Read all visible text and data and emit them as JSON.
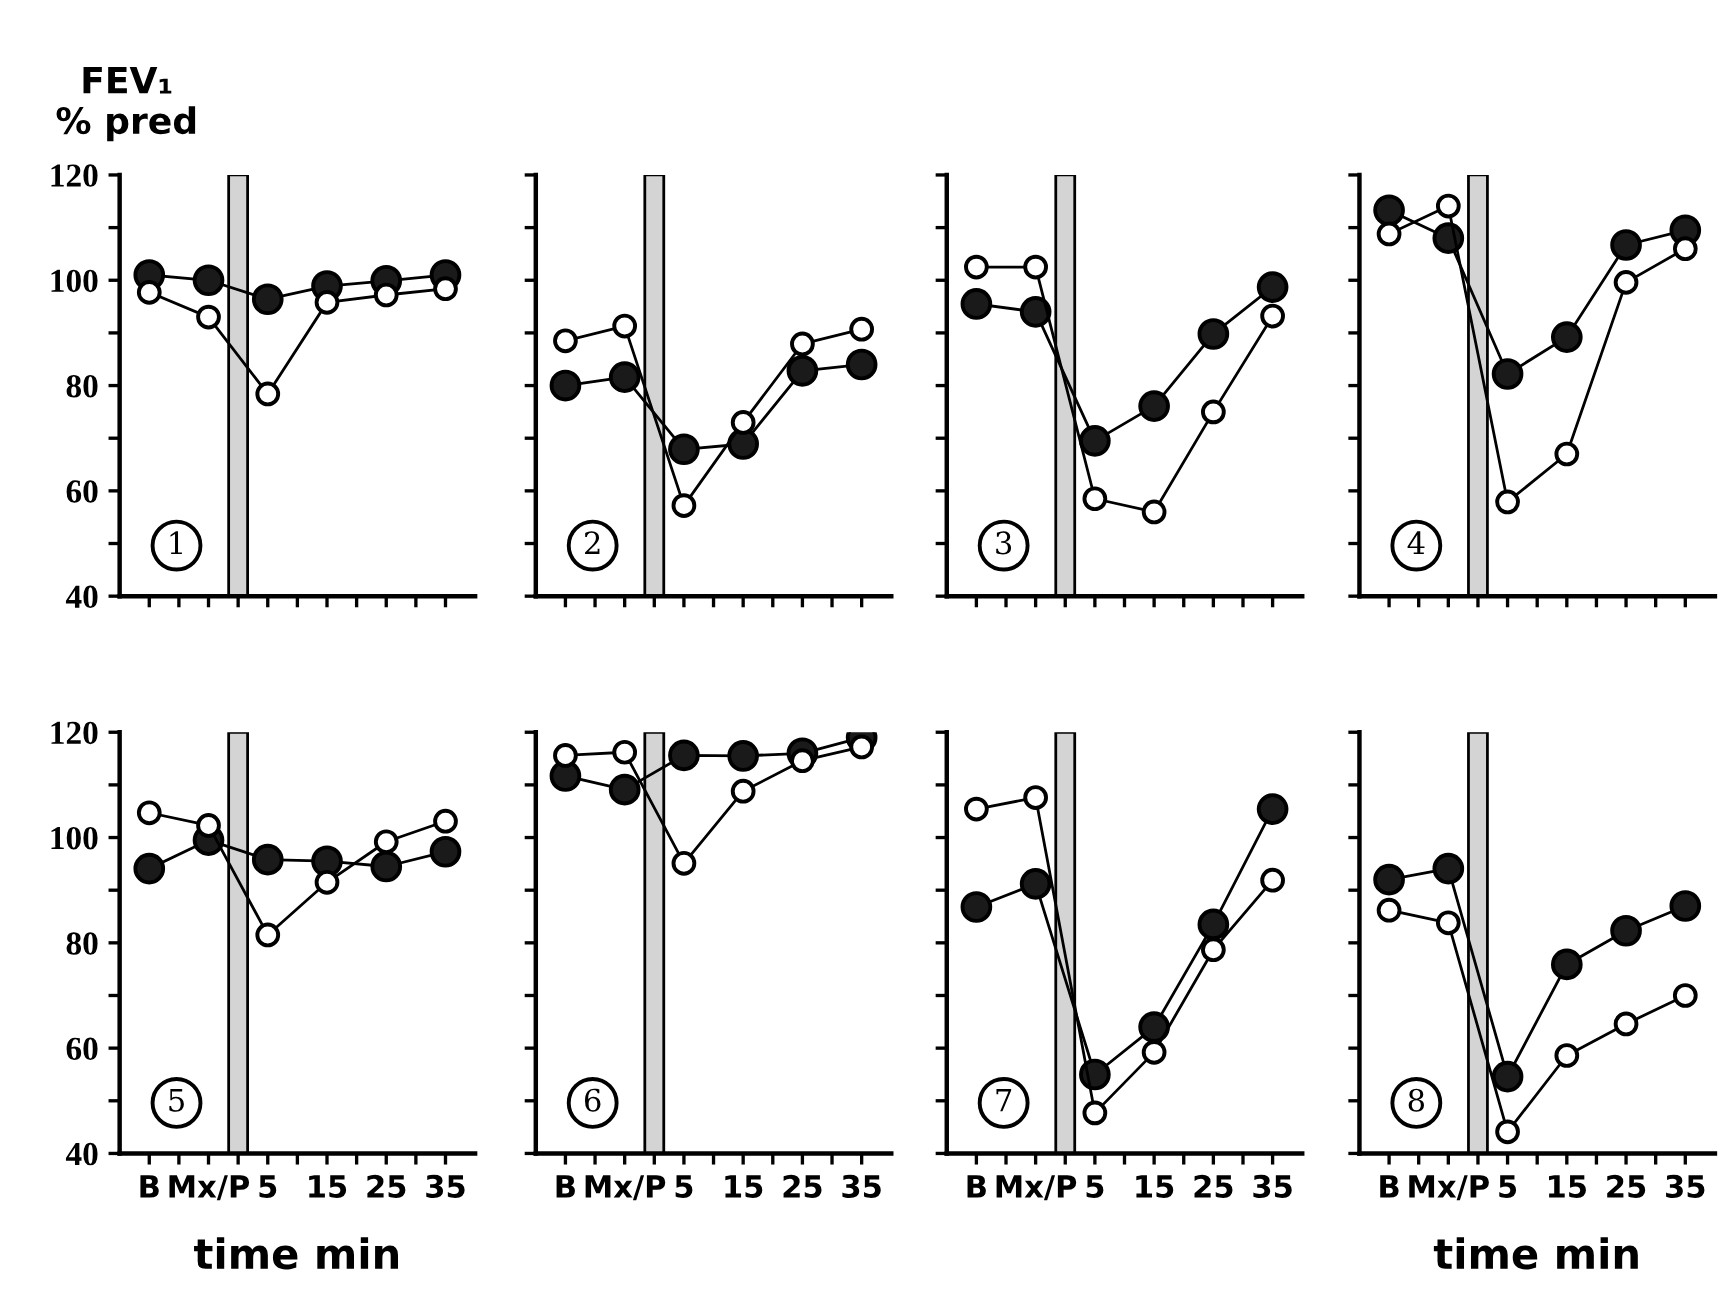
{
  "chart_data": [
    {
      "type": "line",
      "ylabel": "FEV₁\n% pred",
      "annotations": [
        "1"
      ],
      "x": [
        -15,
        -5,
        5,
        15,
        25,
        35
      ],
      "xlim": [
        -20,
        40
      ],
      "ylim": [
        40,
        120
      ],
      "xticks": [
        {
          "value": -15,
          "label": null
        },
        {
          "value": -10,
          "label": null
        },
        {
          "value": -5,
          "label": null
        },
        {
          "value": 0,
          "label": null
        },
        {
          "value": 5,
          "label": null
        },
        {
          "value": 10,
          "label": null
        },
        {
          "value": 15,
          "label": null
        },
        {
          "value": 20,
          "label": null
        },
        {
          "value": 25,
          "label": null
        },
        {
          "value": 30,
          "label": null
        },
        {
          "value": 35,
          "label": null
        }
      ],
      "yticks": [
        40,
        {
          "value": 50,
          "label": null
        },
        60,
        {
          "value": 70,
          "label": null
        },
        80,
        {
          "value": 90,
          "label": null
        },
        100,
        {
          "value": 110,
          "label": null
        },
        120
      ],
      "bands": [
        {
          "axis": "x",
          "from": -1.6,
          "to": 1.6,
          "color": "#d4d4d4"
        }
      ],
      "tick_labels": "y",
      "marker": "circle",
      "grid": false,
      "series": [
        {
          "color": "#1a1a1a",
          "values": [
            101,
            100,
            96.4,
            98.9,
            99.9,
            101
          ]
        },
        {
          "color": "#ffffff",
          "values": [
            97.7,
            93,
            78.4,
            95.8,
            97.2,
            98.4
          ]
        }
      ]
    },
    {
      "type": "line",
      "annotations": [
        "2"
      ],
      "x": [
        -15,
        -5,
        5,
        15,
        25,
        35
      ],
      "xlim": [
        -20,
        40
      ],
      "ylim": [
        40,
        120
      ],
      "xticks": [
        {
          "value": -15,
          "label": null
        },
        {
          "value": -10,
          "label": null
        },
        {
          "value": -5,
          "label": null
        },
        {
          "value": 0,
          "label": null
        },
        {
          "value": 5,
          "label": null
        },
        {
          "value": 10,
          "label": null
        },
        {
          "value": 15,
          "label": null
        },
        {
          "value": 20,
          "label": null
        },
        {
          "value": 25,
          "label": null
        },
        {
          "value": 30,
          "label": null
        },
        {
          "value": 35,
          "label": null
        }
      ],
      "yticks": [
        40,
        {
          "value": 50,
          "label": null
        },
        60,
        {
          "value": 70,
          "label": null
        },
        80,
        {
          "value": 90,
          "label": null
        },
        100,
        {
          "value": 110,
          "label": null
        },
        120
      ],
      "bands": [
        {
          "axis": "x",
          "from": -1.6,
          "to": 1.6,
          "color": "#d4d4d4"
        }
      ],
      "tick_labels": false,
      "marker": "circle",
      "grid": false,
      "series": [
        {
          "color": "#1a1a1a",
          "values": [
            80,
            81.6,
            67.9,
            68.9,
            82.8,
            84
          ]
        },
        {
          "color": "#ffffff",
          "values": [
            88.5,
            91.3,
            57.2,
            73,
            87.9,
            90.7
          ]
        }
      ]
    },
    {
      "type": "line",
      "annotations": [
        "3"
      ],
      "x": [
        -15,
        -5,
        5,
        15,
        25,
        35
      ],
      "xlim": [
        -20,
        40
      ],
      "ylim": [
        40,
        120
      ],
      "xticks": [
        {
          "value": -15,
          "label": null
        },
        {
          "value": -10,
          "label": null
        },
        {
          "value": -5,
          "label": null
        },
        {
          "value": 0,
          "label": null
        },
        {
          "value": 5,
          "label": null
        },
        {
          "value": 10,
          "label": null
        },
        {
          "value": 15,
          "label": null
        },
        {
          "value": 20,
          "label": null
        },
        {
          "value": 25,
          "label": null
        },
        {
          "value": 30,
          "label": null
        },
        {
          "value": 35,
          "label": null
        }
      ],
      "yticks": [
        40,
        {
          "value": 50,
          "label": null
        },
        60,
        {
          "value": 70,
          "label": null
        },
        80,
        {
          "value": 90,
          "label": null
        },
        100,
        {
          "value": 110,
          "label": null
        },
        120
      ],
      "bands": [
        {
          "axis": "x",
          "from": -1.6,
          "to": 1.6,
          "color": "#d4d4d4"
        }
      ],
      "tick_labels": false,
      "marker": "circle",
      "grid": false,
      "series": [
        {
          "color": "#1a1a1a",
          "values": [
            95.5,
            94,
            69.5,
            76.1,
            89.8,
            98.7
          ]
        },
        {
          "color": "#ffffff",
          "values": [
            102.5,
            102.5,
            58.5,
            56,
            75,
            93.2
          ]
        }
      ]
    },
    {
      "type": "line",
      "annotations": [
        "4"
      ],
      "x": [
        -15,
        -5,
        5,
        15,
        25,
        35
      ],
      "xlim": [
        -20,
        40
      ],
      "ylim": [
        40,
        120
      ],
      "xticks": [
        {
          "value": -15,
          "label": null
        },
        {
          "value": -10,
          "label": null
        },
        {
          "value": -5,
          "label": null
        },
        {
          "value": 0,
          "label": null
        },
        {
          "value": 5,
          "label": null
        },
        {
          "value": 10,
          "label": null
        },
        {
          "value": 15,
          "label": null
        },
        {
          "value": 20,
          "label": null
        },
        {
          "value": 25,
          "label": null
        },
        {
          "value": 30,
          "label": null
        },
        {
          "value": 35,
          "label": null
        }
      ],
      "yticks": [
        40,
        {
          "value": 50,
          "label": null
        },
        60,
        {
          "value": 70,
          "label": null
        },
        80,
        {
          "value": 90,
          "label": null
        },
        100,
        {
          "value": 110,
          "label": null
        },
        120
      ],
      "bands": [
        {
          "axis": "x",
          "from": -1.6,
          "to": 1.6,
          "color": "#d4d4d4"
        }
      ],
      "tick_labels": false,
      "marker": "circle",
      "grid": false,
      "series": [
        {
          "color": "#1a1a1a",
          "values": [
            113.3,
            108,
            82.2,
            89.2,
            106.7,
            109.5
          ]
        },
        {
          "color": "#ffffff",
          "values": [
            108.8,
            114.1,
            57.9,
            67,
            99.6,
            106
          ]
        }
      ]
    },
    {
      "type": "line",
      "xlabel": "time min",
      "annotations": [
        "5"
      ],
      "x": [
        -15,
        -5,
        5,
        15,
        25,
        35
      ],
      "xlim": [
        -20,
        40
      ],
      "ylim": [
        40,
        120
      ],
      "xticks": [
        {
          "value": -15,
          "label": "B"
        },
        {
          "value": -10,
          "label": null
        },
        {
          "value": -5,
          "label": "Mx/P"
        },
        {
          "value": 0,
          "label": null
        },
        5,
        {
          "value": 10,
          "label": null
        },
        15,
        {
          "value": 20,
          "label": null
        },
        25,
        {
          "value": 30,
          "label": null
        },
        35
      ],
      "yticks": [
        40,
        {
          "value": 50,
          "label": null
        },
        60,
        {
          "value": 70,
          "label": null
        },
        80,
        {
          "value": 90,
          "label": null
        },
        100,
        {
          "value": 110,
          "label": null
        },
        120
      ],
      "bands": [
        {
          "axis": "x",
          "from": -1.6,
          "to": 1.6,
          "color": "#d4d4d4"
        }
      ],
      "marker": "circle",
      "grid": false,
      "series": [
        {
          "color": "#1a1a1a",
          "values": [
            94.1,
            99.5,
            95.8,
            95.5,
            94.5,
            97.3
          ]
        },
        {
          "color": "#ffffff",
          "values": [
            104.7,
            102.3,
            81.5,
            91.5,
            99.2,
            103.1
          ]
        }
      ]
    },
    {
      "type": "line",
      "annotations": [
        "6"
      ],
      "x": [
        -15,
        -5,
        5,
        15,
        25,
        35
      ],
      "xlim": [
        -20,
        40
      ],
      "ylim": [
        40,
        120
      ],
      "xticks": [
        {
          "value": -15,
          "label": "B"
        },
        {
          "value": -10,
          "label": null
        },
        {
          "value": -5,
          "label": "Mx/P"
        },
        {
          "value": 0,
          "label": null
        },
        5,
        {
          "value": 10,
          "label": null
        },
        15,
        {
          "value": 20,
          "label": null
        },
        25,
        {
          "value": 30,
          "label": null
        },
        35
      ],
      "yticks": [
        40,
        {
          "value": 50,
          "label": null
        },
        60,
        {
          "value": 70,
          "label": null
        },
        80,
        {
          "value": 90,
          "label": null
        },
        100,
        {
          "value": 110,
          "label": null
        },
        120
      ],
      "bands": [
        {
          "axis": "x",
          "from": -1.6,
          "to": 1.6,
          "color": "#d4d4d4"
        }
      ],
      "tick_labels": "x",
      "marker": "circle",
      "grid": false,
      "series": [
        {
          "color": "#1a1a1a",
          "values": [
            111.7,
            109.1,
            115.6,
            115.5,
            116,
            119
          ]
        },
        {
          "color": "#ffffff",
          "values": [
            115.6,
            116.2,
            95.1,
            108.8,
            114.6,
            117.2
          ]
        }
      ]
    },
    {
      "type": "line",
      "annotations": [
        "7"
      ],
      "x": [
        -15,
        -5,
        5,
        15,
        25,
        35
      ],
      "xlim": [
        -20,
        40
      ],
      "ylim": [
        40,
        120
      ],
      "xticks": [
        {
          "value": -15,
          "label": "B"
        },
        {
          "value": -10,
          "label": null
        },
        {
          "value": -5,
          "label": "Mx/P"
        },
        {
          "value": 0,
          "label": null
        },
        5,
        {
          "value": 10,
          "label": null
        },
        15,
        {
          "value": 20,
          "label": null
        },
        25,
        {
          "value": 30,
          "label": null
        },
        35
      ],
      "yticks": [
        40,
        {
          "value": 50,
          "label": null
        },
        60,
        {
          "value": 70,
          "label": null
        },
        80,
        {
          "value": 90,
          "label": null
        },
        100,
        {
          "value": 110,
          "label": null
        },
        120
      ],
      "bands": [
        {
          "axis": "x",
          "from": -1.6,
          "to": 1.6,
          "color": "#d4d4d4"
        }
      ],
      "tick_labels": "x",
      "marker": "circle",
      "grid": false,
      "series": [
        {
          "color": "#1a1a1a",
          "values": [
            86.8,
            91.2,
            55,
            64,
            83.5,
            105.4
          ]
        },
        {
          "color": "#ffffff",
          "values": [
            105.4,
            107.6,
            47.7,
            59.2,
            78.7,
            91.9
          ]
        }
      ]
    },
    {
      "type": "line",
      "xlabel": "time min",
      "annotations": [
        "8"
      ],
      "x": [
        -15,
        -5,
        5,
        15,
        25,
        35
      ],
      "xlim": [
        -20,
        40
      ],
      "ylim": [
        40,
        120
      ],
      "xticks": [
        {
          "value": -15,
          "label": "B"
        },
        {
          "value": -10,
          "label": null
        },
        {
          "value": -5,
          "label": "Mx/P"
        },
        {
          "value": 0,
          "label": null
        },
        5,
        {
          "value": 10,
          "label": null
        },
        15,
        {
          "value": 20,
          "label": null
        },
        25,
        {
          "value": 30,
          "label": null
        },
        35
      ],
      "yticks": [
        40,
        {
          "value": 50,
          "label": null
        },
        60,
        {
          "value": 70,
          "label": null
        },
        80,
        {
          "value": 90,
          "label": null
        },
        100,
        {
          "value": 110,
          "label": null
        },
        120
      ],
      "bands": [
        {
          "axis": "x",
          "from": -1.6,
          "to": 1.6,
          "color": "#d4d4d4"
        }
      ],
      "tick_labels": "x",
      "marker": "circle",
      "grid": false,
      "series": [
        {
          "color": "#1a1a1a",
          "values": [
            92,
            94.1,
            54.6,
            75.9,
            82.3,
            87
          ]
        },
        {
          "color": "#ffffff",
          "values": [
            86.2,
            83.8,
            44.1,
            58.6,
            64.6,
            70
          ]
        }
      ]
    }
  ]
}
